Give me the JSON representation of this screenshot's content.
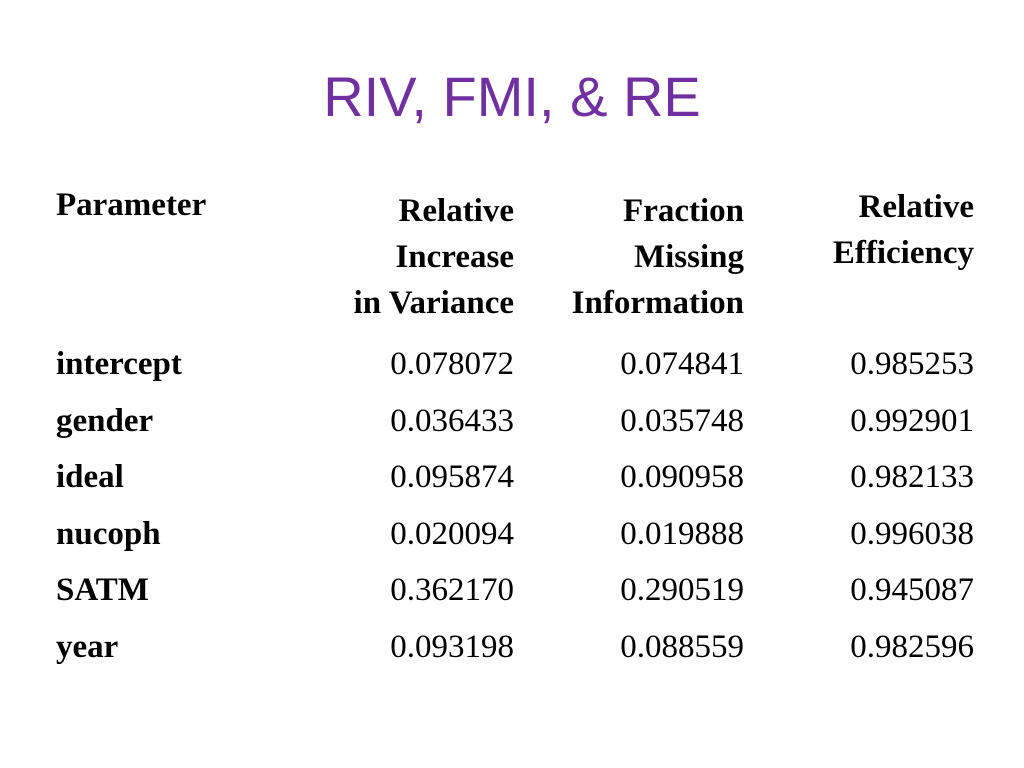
{
  "slide": {
    "title": "RIV, FMI, & RE"
  },
  "table": {
    "headers": {
      "parameter": "Parameter",
      "riv": "Relative\nIncrease\nin Variance",
      "fmi": "Fraction\nMissing\nInformation",
      "re": "Relative\nEfficiency"
    },
    "rows": [
      {
        "parameter": "intercept",
        "riv": "0.078072",
        "fmi": "0.074841",
        "re": "0.985253"
      },
      {
        "parameter": "gender",
        "riv": "0.036433",
        "fmi": "0.035748",
        "re": "0.992901"
      },
      {
        "parameter": "ideal",
        "riv": "0.095874",
        "fmi": "0.090958",
        "re": "0.982133"
      },
      {
        "parameter": "nucoph",
        "riv": "0.020094",
        "fmi": "0.019888",
        "re": "0.996038"
      },
      {
        "parameter": "SATM",
        "riv": "0.362170",
        "fmi": "0.290519",
        "re": "0.945087"
      },
      {
        "parameter": "year",
        "riv": "0.093198",
        "fmi": "0.088559",
        "re": "0.982596"
      }
    ]
  },
  "colors": {
    "title": "#7030a0",
    "text": "#000000",
    "background": "#ffffff"
  }
}
